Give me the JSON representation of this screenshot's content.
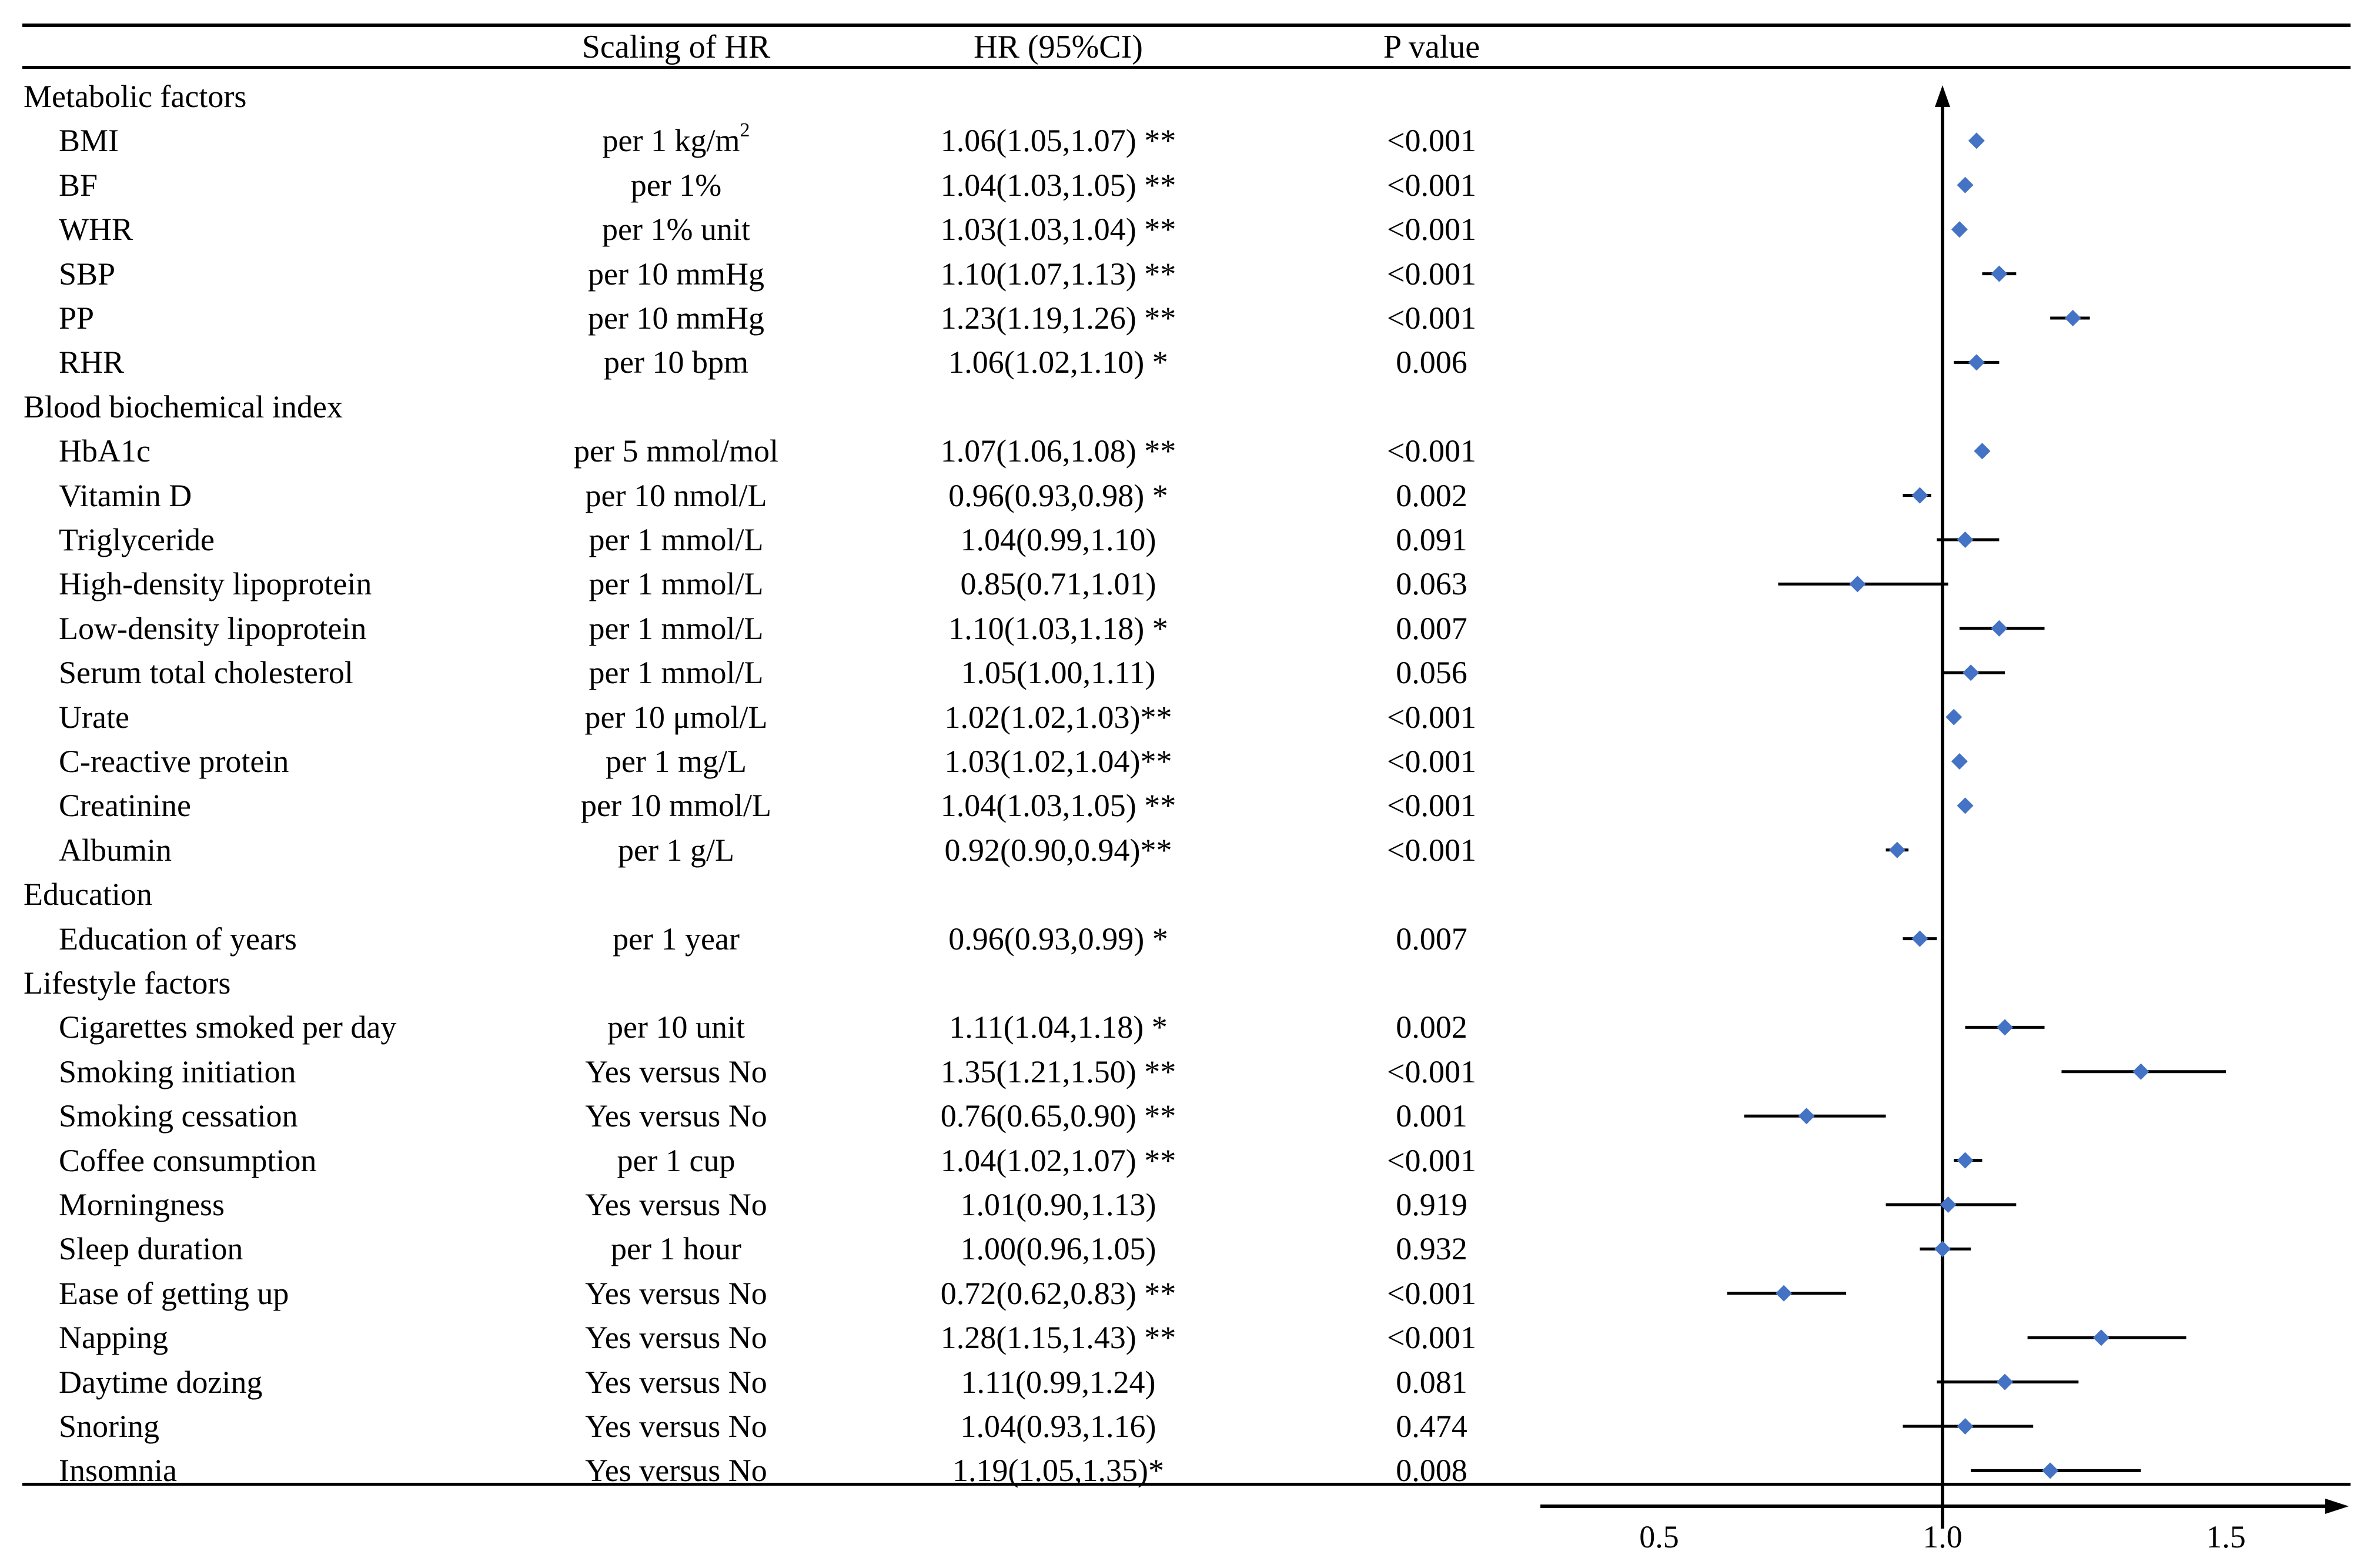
{
  "headers": {
    "variable": "",
    "scaling": "Scaling of HR",
    "hr": "HR (95%CI)",
    "p": "P value"
  },
  "rows": [
    {
      "type": "section",
      "label": "Metabolic factors"
    },
    {
      "type": "item",
      "label": "BMI",
      "scaling": "per 1 kg/m",
      "scaling_sup": "2",
      "hr_text": "1.06(1.05,1.07) **",
      "p": "<0.001",
      "hr": 1.06,
      "lo": 1.05,
      "hi": 1.07
    },
    {
      "type": "item",
      "label": "BF",
      "scaling": "per 1%",
      "hr_text": "1.04(1.03,1.05) **",
      "p": "<0.001",
      "hr": 1.04,
      "lo": 1.03,
      "hi": 1.05
    },
    {
      "type": "item",
      "label": "WHR",
      "scaling": "per 1% unit",
      "hr_text": "1.03(1.03,1.04) **",
      "p": "<0.001",
      "hr": 1.03,
      "lo": 1.03,
      "hi": 1.04
    },
    {
      "type": "item",
      "label": "SBP",
      "scaling": "per 10 mmHg",
      "hr_text": "1.10(1.07,1.13) **",
      "p": "<0.001",
      "hr": 1.1,
      "lo": 1.07,
      "hi": 1.13
    },
    {
      "type": "item",
      "label": "PP",
      "scaling": "per 10 mmHg",
      "hr_text": "1.23(1.19,1.26) **",
      "p": "<0.001",
      "hr": 1.23,
      "lo": 1.19,
      "hi": 1.26
    },
    {
      "type": "item",
      "label": "RHR",
      "scaling": "per 10 bpm",
      "hr_text": "1.06(1.02,1.10) *",
      "p": "0.006",
      "hr": 1.06,
      "lo": 1.02,
      "hi": 1.1
    },
    {
      "type": "section",
      "label": "Blood biochemical index"
    },
    {
      "type": "item",
      "label": "HbA1c",
      "scaling": "per 5 mmol/mol",
      "hr_text": "1.07(1.06,1.08) **",
      "p": "<0.001",
      "hr": 1.07,
      "lo": 1.06,
      "hi": 1.08
    },
    {
      "type": "item",
      "label": "Vitamin D",
      "scaling": "per 10 nmol/L",
      "hr_text": "0.96(0.93,0.98) *",
      "p": "0.002",
      "hr": 0.96,
      "lo": 0.93,
      "hi": 0.98
    },
    {
      "type": "item",
      "label": "Triglyceride",
      "scaling": "per 1 mmol/L",
      "hr_text": "1.04(0.99,1.10)",
      "p": "0.091",
      "hr": 1.04,
      "lo": 0.99,
      "hi": 1.1
    },
    {
      "type": "item",
      "label": "High-density lipoprotein",
      "scaling": "per 1 mmol/L",
      "hr_text": "0.85(0.71,1.01)",
      "p": "0.063",
      "hr": 0.85,
      "lo": 0.71,
      "hi": 1.01
    },
    {
      "type": "item",
      "label": "Low-density lipoprotein",
      "scaling": "per 1 mmol/L",
      "hr_text": "1.10(1.03,1.18) *",
      "p": "0.007",
      "hr": 1.1,
      "lo": 1.03,
      "hi": 1.18
    },
    {
      "type": "item",
      "label": "Serum total cholesterol",
      "scaling": "per 1 mmol/L",
      "hr_text": "1.05(1.00,1.11)",
      "p": "0.056",
      "hr": 1.05,
      "lo": 1.0,
      "hi": 1.11
    },
    {
      "type": "item",
      "label": "Urate",
      "scaling": "per 10 μmol/L",
      "hr_text": "1.02(1.02,1.03)**",
      "p": "<0.001",
      "hr": 1.02,
      "lo": 1.02,
      "hi": 1.03
    },
    {
      "type": "item",
      "label": "C-reactive protein",
      "scaling": "per 1 mg/L",
      "hr_text": "1.03(1.02,1.04)**",
      "p": "<0.001",
      "hr": 1.03,
      "lo": 1.02,
      "hi": 1.04
    },
    {
      "type": "item",
      "label": "Creatinine",
      "scaling": "per 10 mmol/L",
      "hr_text": "1.04(1.03,1.05) **",
      "p": "<0.001",
      "hr": 1.04,
      "lo": 1.03,
      "hi": 1.05
    },
    {
      "type": "item",
      "label": "Albumin",
      "scaling": "per 1 g/L",
      "hr_text": "0.92(0.90,0.94)**",
      "p": "<0.001",
      "hr": 0.92,
      "lo": 0.9,
      "hi": 0.94
    },
    {
      "type": "section",
      "label": "Education"
    },
    {
      "type": "item",
      "label": "Education of years",
      "scaling": "per 1 year",
      "hr_text": "0.96(0.93,0.99) *",
      "p": "0.007",
      "hr": 0.96,
      "lo": 0.93,
      "hi": 0.99
    },
    {
      "type": "section",
      "label": "Lifestyle factors"
    },
    {
      "type": "item",
      "label": "Cigarettes smoked per day",
      "scaling": "per 10 unit",
      "hr_text": "1.11(1.04,1.18) *",
      "p": "0.002",
      "hr": 1.11,
      "lo": 1.04,
      "hi": 1.18
    },
    {
      "type": "item",
      "label": "Smoking initiation",
      "scaling": "Yes versus No",
      "hr_text": "1.35(1.21,1.50) **",
      "p": "<0.001",
      "hr": 1.35,
      "lo": 1.21,
      "hi": 1.5
    },
    {
      "type": "item",
      "label": "Smoking cessation",
      "scaling": "Yes versus No",
      "hr_text": "0.76(0.65,0.90) **",
      "p": "0.001",
      "hr": 0.76,
      "lo": 0.65,
      "hi": 0.9
    },
    {
      "type": "item",
      "label": "Coffee consumption",
      "scaling": "per 1 cup",
      "hr_text": "1.04(1.02,1.07) **",
      "p": "<0.001",
      "hr": 1.04,
      "lo": 1.02,
      "hi": 1.07
    },
    {
      "type": "item",
      "label": "Morningness",
      "scaling": "Yes versus No",
      "hr_text": "1.01(0.90,1.13)",
      "p": "0.919",
      "hr": 1.01,
      "lo": 0.9,
      "hi": 1.13
    },
    {
      "type": "item",
      "label": "Sleep duration",
      "scaling": "per 1 hour",
      "hr_text": "1.00(0.96,1.05)",
      "p": "0.932",
      "hr": 1.0,
      "lo": 0.96,
      "hi": 1.05
    },
    {
      "type": "item",
      "label": "Ease of getting up",
      "scaling": "Yes versus No",
      "hr_text": "0.72(0.62,0.83) **",
      "p": "<0.001",
      "hr": 0.72,
      "lo": 0.62,
      "hi": 0.83
    },
    {
      "type": "item",
      "label": "Napping",
      "scaling": "Yes versus No",
      "hr_text": "1.28(1.15,1.43) **",
      "p": "<0.001",
      "hr": 1.28,
      "lo": 1.15,
      "hi": 1.43
    },
    {
      "type": "item",
      "label": "Daytime dozing",
      "scaling": "Yes versus No",
      "hr_text": "1.11(0.99,1.24)",
      "p": "0.081",
      "hr": 1.11,
      "lo": 0.99,
      "hi": 1.24
    },
    {
      "type": "item",
      "label": "Snoring",
      "scaling": "Yes versus No",
      "hr_text": "1.04(0.93,1.16)",
      "p": "0.474",
      "hr": 1.04,
      "lo": 0.93,
      "hi": 1.16
    },
    {
      "type": "item",
      "label": "Insomnia",
      "scaling": "Yes versus No",
      "hr_text": "1.19(1.05,1.35)*",
      "p": "0.008",
      "hr": 1.19,
      "lo": 1.05,
      "hi": 1.35
    }
  ],
  "chart_data": {
    "type": "forest",
    "title": "",
    "xlabel": "",
    "ylabel": "",
    "reference_line": 1.0,
    "xticks": [
      0.5,
      1.0,
      1.5
    ],
    "xtick_labels": [
      "0.5",
      "1.0",
      "1.5"
    ],
    "xlim": [
      0.3,
      1.7
    ],
    "marker_color": "#4472C4",
    "series": [
      {
        "name": "HR (95%CI)"
      }
    ]
  }
}
